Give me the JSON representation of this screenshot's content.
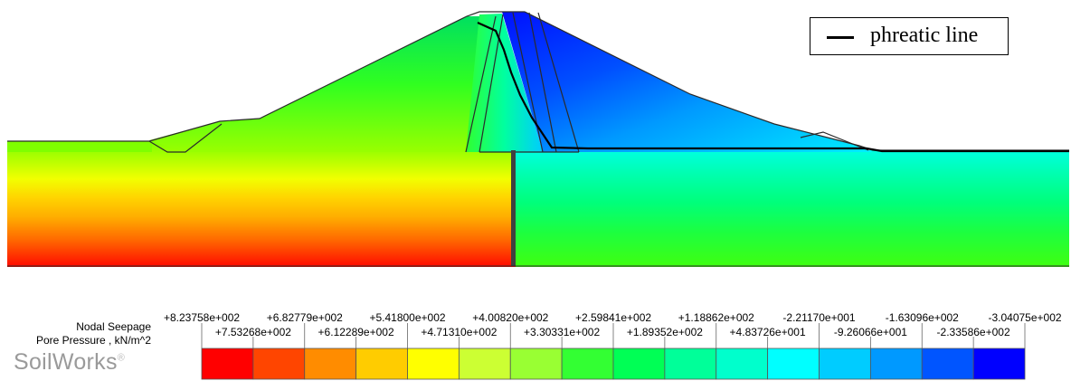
{
  "legend": {
    "phreatic_label": "phreatic line"
  },
  "colorbar": {
    "title_line1": "Nodal Seepage",
    "title_line2": "Pore Pressure , kN/m^2",
    "values_upper": [
      "+8.23758e+002",
      "+6.82779e+002",
      "+5.41800e+002",
      "+4.00820e+002",
      "+2.59841e+002",
      "+1.18862e+002",
      "-2.21170e+001",
      "-1.63096e+002",
      "-3.04075e+002"
    ],
    "values_lower": [
      "+7.53268e+002",
      "+6.12289e+002",
      "+4.71310e+002",
      "+3.30331e+002",
      "+1.89352e+002",
      "+4.83726e+001",
      "-9.26066e+001",
      "-2.33586e+002"
    ],
    "colors": [
      "#ff0000",
      "#ff4500",
      "#ff8c00",
      "#ffcc00",
      "#ffff00",
      "#ccff33",
      "#99ff33",
      "#33ff33",
      "#00ff55",
      "#00ff99",
      "#00ffcc",
      "#00ffff",
      "#00ccff",
      "#0099ff",
      "#0055ff",
      "#0000ff"
    ]
  },
  "brand": {
    "name": "SoilWorks",
    "mark": "®"
  }
}
